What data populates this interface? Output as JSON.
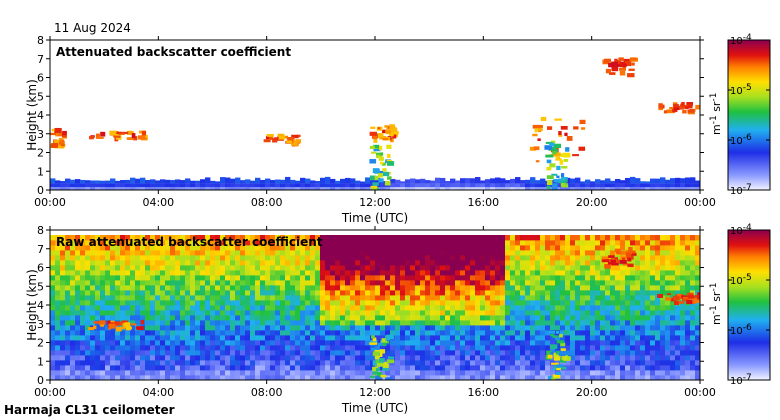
{
  "date": "11 Aug 2024",
  "instrument": "Harmaja CL31 ceilometer",
  "colors": {
    "sky": "#7fa8ff",
    "low_noise": "#2030e0",
    "mid": "#30c040",
    "high": "#ffe000",
    "cloud": "#e02010",
    "top": "#8a0050"
  },
  "chart_data": [
    {
      "type": "heatmap",
      "title": "Attenuated backscatter coefficient",
      "xlabel": "Time (UTC)",
      "ylabel": "Height (km)",
      "xticks": [
        "00:00",
        "04:00",
        "08:00",
        "12:00",
        "16:00",
        "20:00",
        "00:00"
      ],
      "xlim": [
        0,
        24
      ],
      "ylim": [
        0,
        8
      ],
      "yticks": [
        0,
        1,
        2,
        3,
        4,
        5,
        6,
        7,
        8
      ],
      "colorbar": {
        "label": [
          "m",
          "-1",
          "sr",
          "-1"
        ],
        "ticks": [
          {
            "base": "10",
            "exp": "-4",
            "value": -4
          },
          {
            "base": "10",
            "exp": "-5",
            "value": -5
          },
          {
            "base": "10",
            "exp": "-6",
            "value": -6
          },
          {
            "base": "10",
            "exp": "-7",
            "value": -7
          }
        ],
        "range": [
          -7,
          -4
        ]
      },
      "features": [
        {
          "name": "cloud layer",
          "t0": 0.1,
          "t1": 0.6,
          "h0": 2.2,
          "h1": 3.2
        },
        {
          "name": "cloud layer",
          "t0": 1.5,
          "t1": 3.5,
          "h0": 2.7,
          "h1": 3.1
        },
        {
          "name": "cloud layer",
          "t0": 7.8,
          "t1": 9.2,
          "h0": 2.4,
          "h1": 3.0
        },
        {
          "name": "cloud layer",
          "t0": 11.9,
          "t1": 12.8,
          "h0": 2.6,
          "h1": 3.4
        },
        {
          "name": "precipitation",
          "t0": 11.9,
          "t1": 12.6,
          "h0": 0,
          "h1": 2.4
        },
        {
          "name": "cloud layer",
          "t0": 17.8,
          "t1": 19.7,
          "h0": 1.5,
          "h1": 4.0
        },
        {
          "name": "precipitation",
          "t0": 18.4,
          "t1": 19.1,
          "h0": 0,
          "h1": 2.6
        },
        {
          "name": "high cloud",
          "t0": 20.5,
          "t1": 21.6,
          "h0": 6.0,
          "h1": 7.0
        },
        {
          "name": "high cloud",
          "t0": 22.5,
          "t1": 24,
          "h0": 4.1,
          "h1": 4.6
        }
      ]
    },
    {
      "type": "heatmap",
      "title": "Raw attenuated backscatter coefficient",
      "xlabel": "Time (UTC)",
      "ylabel": "Height (km)",
      "xticks": [
        "00:00",
        "04:00",
        "08:00",
        "12:00",
        "16:00",
        "20:00",
        "00:00"
      ],
      "xlim": [
        0,
        24
      ],
      "ylim": [
        0,
        8
      ],
      "yticks": [
        0,
        1,
        2,
        3,
        4,
        5,
        6,
        7,
        8
      ],
      "colorbar": {
        "label": [
          "m",
          "-1",
          "sr",
          "-1"
        ],
        "ticks": [
          {
            "base": "10",
            "exp": "-4",
            "value": -4
          },
          {
            "base": "10",
            "exp": "-5",
            "value": -5
          },
          {
            "base": "10",
            "exp": "-6",
            "value": -6
          },
          {
            "base": "10",
            "exp": "-7",
            "value": -7
          }
        ],
        "range": [
          -7,
          -4
        ]
      },
      "features": [
        {
          "name": "noise background",
          "t0": 0,
          "t1": 24,
          "h0": 1.5,
          "h1": 7.7
        },
        {
          "name": "high noise",
          "t0": 10.0,
          "t1": 16.8,
          "h0": 4.5,
          "h1": 7.7
        },
        {
          "name": "cloud layer",
          "t0": 1.5,
          "t1": 3.5,
          "h0": 2.7,
          "h1": 3.1
        },
        {
          "name": "precipitation",
          "t0": 11.9,
          "t1": 12.6,
          "h0": 0,
          "h1": 2.4
        },
        {
          "name": "precipitation",
          "t0": 18.4,
          "t1": 19.1,
          "h0": 0,
          "h1": 2.6
        },
        {
          "name": "high cloud",
          "t0": 20.5,
          "t1": 21.6,
          "h0": 6.0,
          "h1": 7.0
        },
        {
          "name": "high cloud",
          "t0": 22.5,
          "t1": 24,
          "h0": 4.1,
          "h1": 4.6
        }
      ]
    }
  ]
}
